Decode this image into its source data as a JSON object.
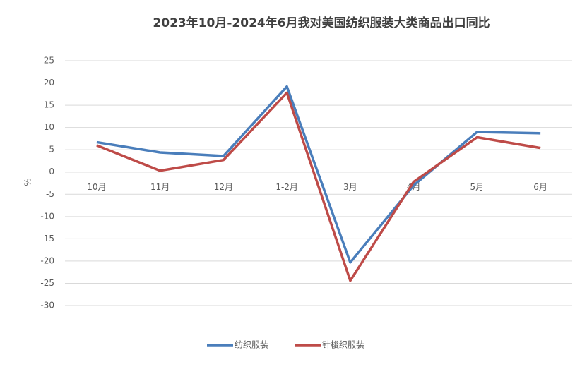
{
  "chart_data": {
    "type": "line",
    "title": "2023年10月-2024年6月我对美国纺织服装大类商品出口同比",
    "y_label": "%",
    "categories": [
      "10月",
      "11月",
      "12月",
      "1-2月",
      "3月",
      "4月",
      "5月",
      "6月"
    ],
    "series": [
      {
        "name": "纺织服装",
        "color": "#4a7ebb",
        "values": [
          6.7,
          4.4,
          3.6,
          19.2,
          -20.3,
          -3.0,
          9.0,
          8.7
        ]
      },
      {
        "name": "针梭织服装",
        "color": "#be4b48",
        "values": [
          6.0,
          0.3,
          2.7,
          17.8,
          -24.4,
          -2.2,
          7.8,
          5.4
        ]
      }
    ],
    "ylim": [
      -30,
      25
    ],
    "yticks": [
      -30,
      -25,
      -20,
      -15,
      -10,
      -5,
      0,
      5,
      10,
      15,
      20,
      25
    ],
    "grid": true
  }
}
